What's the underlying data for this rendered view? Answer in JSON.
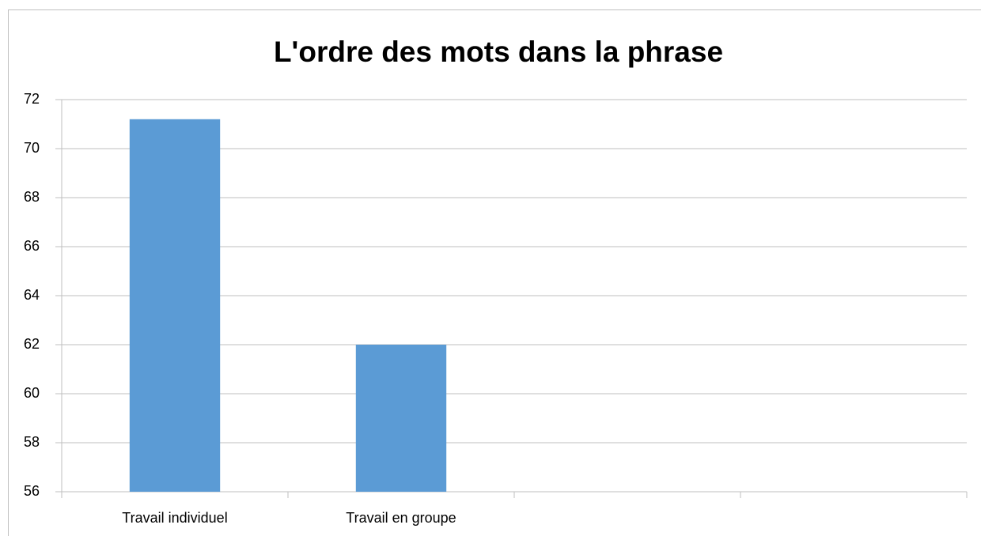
{
  "chart_data": {
    "type": "bar",
    "title": "L'ordre des mots dans la phrase",
    "categories": [
      "Travail individuel",
      "Travail en groupe",
      null,
      null
    ],
    "values": [
      71.2,
      62,
      null,
      null
    ],
    "color": "#5b9bd5",
    "ylim": [
      56,
      72
    ],
    "yticks": [
      56,
      58,
      60,
      62,
      64,
      66,
      68,
      70,
      72
    ],
    "grid": true
  }
}
